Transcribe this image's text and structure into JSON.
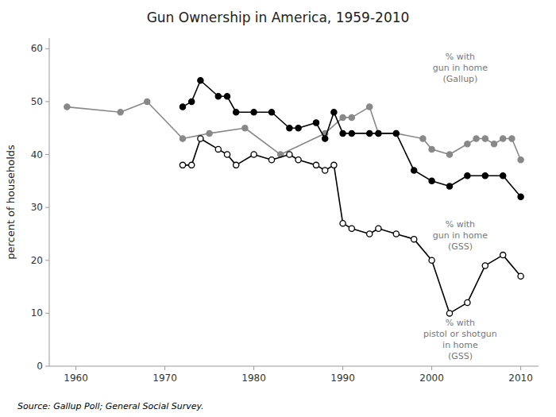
{
  "chart_data": {
    "type": "line",
    "title": "Gun Ownership in America, 1959-2010",
    "y_label": "percent of households",
    "source": "Source: Gallup Poll; General Social Survey.",
    "xlim": [
      1957,
      2012
    ],
    "ylim": [
      0,
      62
    ],
    "xticks": [
      1960,
      1970,
      1980,
      1990,
      2000,
      2010
    ],
    "yticks": [
      0,
      10,
      20,
      30,
      40,
      50,
      60
    ],
    "grid": false,
    "series": [
      {
        "color": "#888888",
        "marker": "circle",
        "x": [
          1959,
          1965,
          1968,
          1972,
          1975,
          1979,
          1983,
          1988,
          1990,
          1991,
          1993,
          1994,
          1996,
          1999,
          2000,
          2002,
          2004,
          2005,
          2006,
          2007,
          2008,
          2009,
          2010
        ],
        "values": [
          49,
          48,
          50,
          43,
          44,
          45,
          40,
          44,
          47,
          47,
          49,
          44,
          44,
          43,
          41,
          40,
          42,
          43,
          43,
          42,
          43,
          43,
          39
        ]
      },
      {
        "color": "#000000",
        "marker": "circle",
        "x": [
          1972,
          1973,
          1974,
          1976,
          1977,
          1978,
          1980,
          1982,
          1984,
          1985,
          1987,
          1988,
          1989,
          1990,
          1991,
          1993,
          1994,
          1996,
          1998,
          2000,
          2002,
          2004,
          2006,
          2008,
          2010
        ],
        "values": [
          49,
          50,
          54,
          51,
          51,
          48,
          48,
          48,
          45,
          45,
          46,
          43,
          48,
          44,
          44,
          44,
          44,
          44,
          37,
          35,
          34,
          36,
          36,
          36,
          32
        ]
      },
      {
        "color": "#000000",
        "marker": "open-circle",
        "x": [
          1972,
          1973,
          1974,
          1976,
          1977,
          1978,
          1980,
          1982,
          1984,
          1985,
          1987,
          1988,
          1989,
          1990,
          1991,
          1993,
          1994,
          1996,
          1998,
          2000,
          2002,
          2004,
          2006,
          2008,
          2010
        ],
        "values": [
          38,
          38,
          43,
          41,
          40,
          38,
          40,
          39,
          40,
          39,
          38,
          37,
          38,
          27,
          26,
          25,
          26,
          25,
          24,
          20,
          10,
          12,
          19,
          21,
          17
        ]
      }
    ],
    "annotations": [
      "% with\ngun in home\n(Gallup)",
      "% with\ngun in home\n(GSS)",
      "% with\npistol or shotgun\nin home\n(GSS)"
    ]
  }
}
